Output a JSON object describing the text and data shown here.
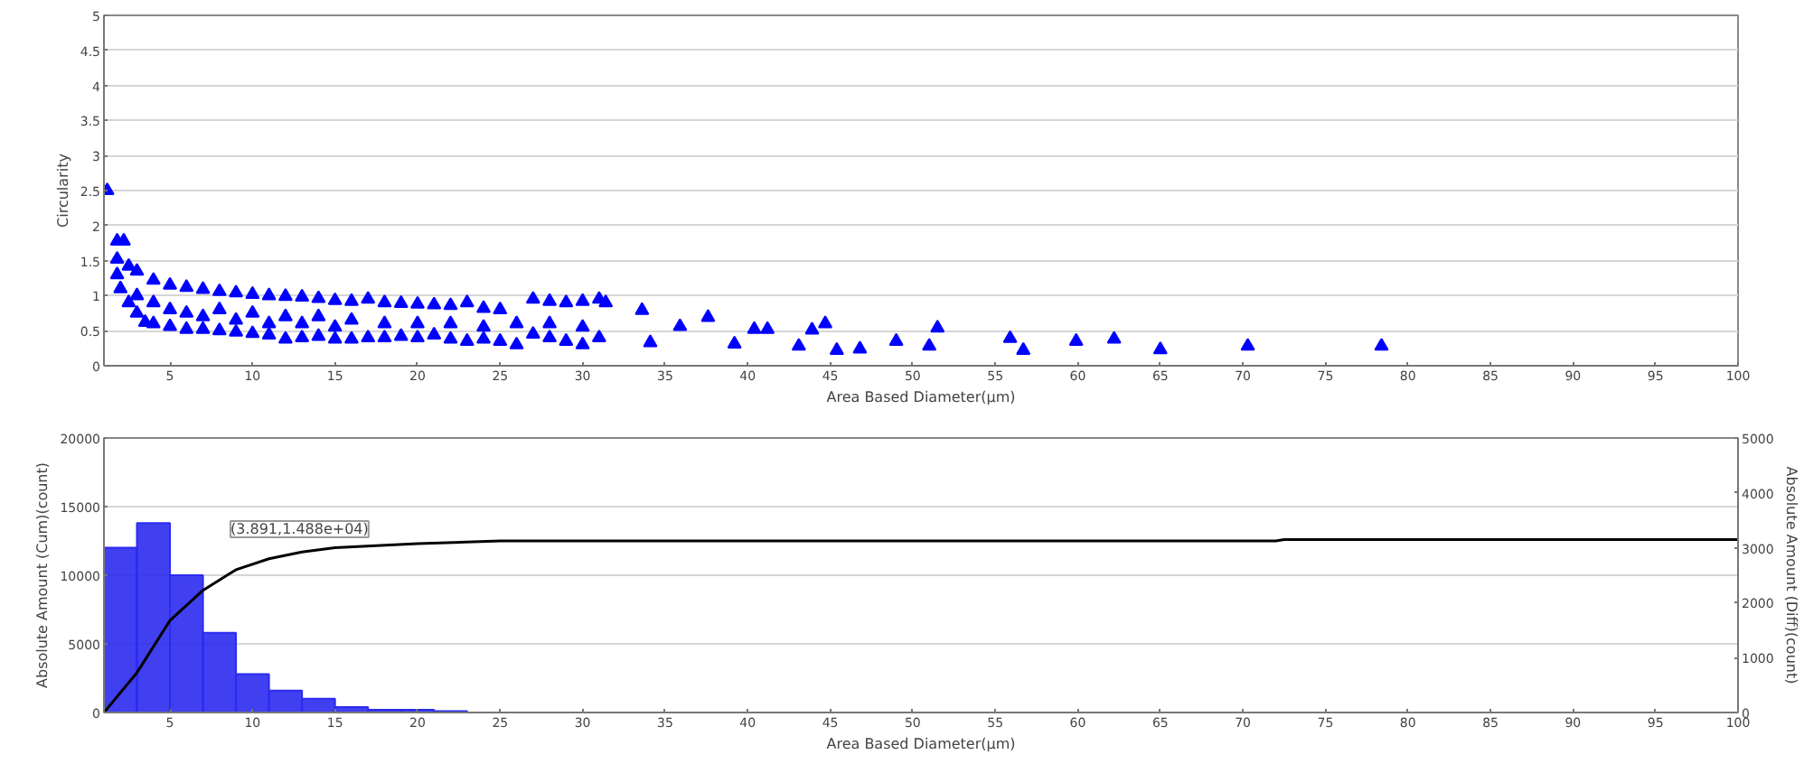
{
  "chart_data": [
    {
      "type": "scatter",
      "xlabel": "Area Based Diameter(μm)",
      "ylabel": "Circularity",
      "xlim": [
        1,
        100
      ],
      "xticks": [
        5,
        10,
        15,
        20,
        25,
        30,
        35,
        40,
        45,
        50,
        55,
        60,
        65,
        70,
        75,
        80,
        85,
        90,
        95,
        100
      ],
      "ylim": [
        0,
        5
      ],
      "yticks": [
        0,
        0.5,
        1,
        1.5,
        2,
        2.5,
        3,
        3.5,
        4,
        4.5,
        5
      ],
      "grid": "y",
      "marker": "triangle",
      "series": [
        {
          "color": "#0000ff",
          "x": [
            1.2,
            1.8,
            2.2,
            1.8,
            2.5,
            3,
            4,
            5,
            6,
            7,
            8,
            9,
            10,
            11,
            12,
            13,
            14,
            15,
            16,
            17,
            18,
            19,
            20,
            21,
            22,
            23,
            24,
            25,
            27,
            28,
            29,
            30,
            31,
            1.8,
            2,
            2.5,
            3,
            3.5,
            4,
            5,
            6,
            7,
            8,
            9,
            10,
            11,
            12,
            13,
            14,
            15,
            16,
            17,
            18,
            19,
            20,
            21,
            22,
            23,
            24,
            25,
            26,
            27,
            28,
            29,
            30,
            31,
            3,
            4,
            5,
            6,
            7,
            8,
            9,
            10,
            11,
            12,
            13,
            14,
            15,
            16,
            18,
            20,
            22,
            24,
            26,
            28,
            30,
            31.4,
            33.6,
            35.9,
            37.6,
            40.4,
            41.2,
            34.1,
            39.2,
            43.9,
            44.7,
            43.1,
            45.4,
            46.8,
            49.0,
            51.0,
            51.5,
            55.9,
            56.7,
            59.9,
            62.2,
            65.0,
            70.3,
            78.4
          ],
          "values": [
            2.5,
            1.78,
            1.78,
            1.52,
            1.42,
            1.35,
            1.22,
            1.15,
            1.12,
            1.09,
            1.06,
            1.04,
            1.02,
            1.0,
            0.99,
            0.98,
            0.96,
            0.93,
            0.92,
            0.95,
            0.9,
            0.89,
            0.88,
            0.87,
            0.86,
            0.9,
            0.82,
            0.8,
            0.95,
            0.92,
            0.9,
            0.92,
            0.95,
            1.3,
            1.1,
            0.9,
            0.75,
            0.62,
            0.6,
            0.56,
            0.52,
            0.52,
            0.5,
            0.48,
            0.46,
            0.44,
            0.38,
            0.4,
            0.42,
            0.38,
            0.38,
            0.4,
            0.4,
            0.42,
            0.4,
            0.44,
            0.38,
            0.35,
            0.38,
            0.35,
            0.3,
            0.45,
            0.4,
            0.35,
            0.3,
            0.4,
            1.0,
            0.9,
            0.8,
            0.75,
            0.7,
            0.8,
            0.65,
            0.75,
            0.6,
            0.7,
            0.6,
            0.7,
            0.55,
            0.65,
            0.6,
            0.6,
            0.6,
            0.55,
            0.6,
            0.6,
            0.55,
            0.9,
            0.79,
            0.56,
            0.69,
            0.52,
            0.52,
            0.33,
            0.31,
            0.51,
            0.6,
            0.28,
            0.22,
            0.24,
            0.35,
            0.28,
            0.54,
            0.39,
            0.22,
            0.35,
            0.38,
            0.23,
            0.28,
            0.28
          ]
        }
      ]
    },
    {
      "type": "histogram",
      "xlabel": "Area Based Diameter(μm)",
      "ylabel": "Absolute Amount (Cum)(count)",
      "y2label": "Absolute Amount (Diff)(count)",
      "xlim": [
        1,
        100
      ],
      "xticks": [
        5,
        10,
        15,
        20,
        25,
        30,
        35,
        40,
        45,
        50,
        55,
        60,
        65,
        70,
        75,
        80,
        85,
        90,
        95,
        100
      ],
      "ylim": [
        0,
        20000
      ],
      "yticks": [
        0,
        5000,
        10000,
        15000,
        20000
      ],
      "y2lim": [
        0,
        5000
      ],
      "y2ticks": [
        0,
        1000,
        2000,
        3000,
        4000,
        5000
      ],
      "grid": "y",
      "annotations": [
        "(3.891,1.488e+04)"
      ],
      "series": [
        {
          "type": "histogram",
          "axis": "y2",
          "color": "#2b2bf0",
          "bins": [
            1,
            3,
            5,
            7,
            9,
            11,
            13,
            15,
            17,
            19,
            21,
            23
          ],
          "values": [
            3000,
            3450,
            2500,
            1450,
            700,
            400,
            250,
            100,
            50,
            50,
            25
          ]
        },
        {
          "type": "line",
          "color": "#000000",
          "x": [
            1,
            3,
            5,
            7,
            9,
            11,
            13,
            15,
            20,
            25,
            30,
            72,
            72.5,
            100
          ],
          "values": [
            0,
            2900,
            6700,
            8900,
            10400,
            11200,
            11700,
            12000,
            12300,
            12500,
            12500,
            12500,
            12600,
            12600
          ]
        }
      ]
    }
  ]
}
